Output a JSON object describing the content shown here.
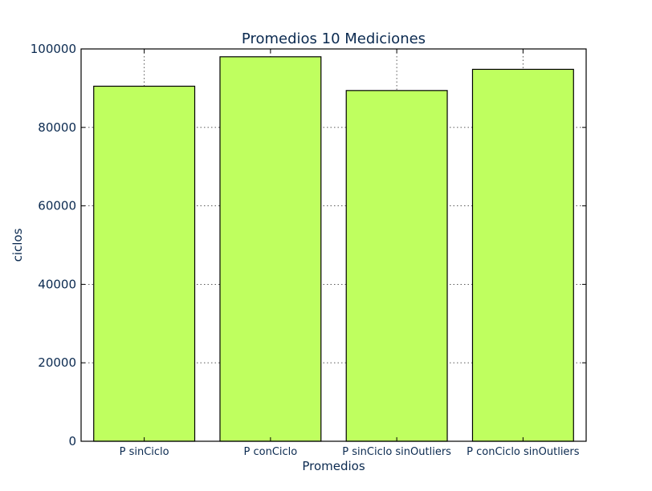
{
  "chart_data": {
    "type": "bar",
    "title": "Promedios 10 Mediciones",
    "xlabel": "Promedios",
    "ylabel": "ciclos",
    "categories": [
      "P sinCiclo",
      "P conCiclo",
      "P sinCiclo sinOutliers",
      "P conCiclo sinOutliers"
    ],
    "values": [
      90500,
      98000,
      89400,
      94800
    ],
    "ylim": [
      0,
      100000
    ],
    "yticks": [
      0,
      20000,
      40000,
      60000,
      80000,
      100000
    ],
    "ytick_labels": [
      "0",
      "20000",
      "40000",
      "60000",
      "80000",
      "100000"
    ],
    "grid": true,
    "bar_color": "#bfff5f"
  }
}
